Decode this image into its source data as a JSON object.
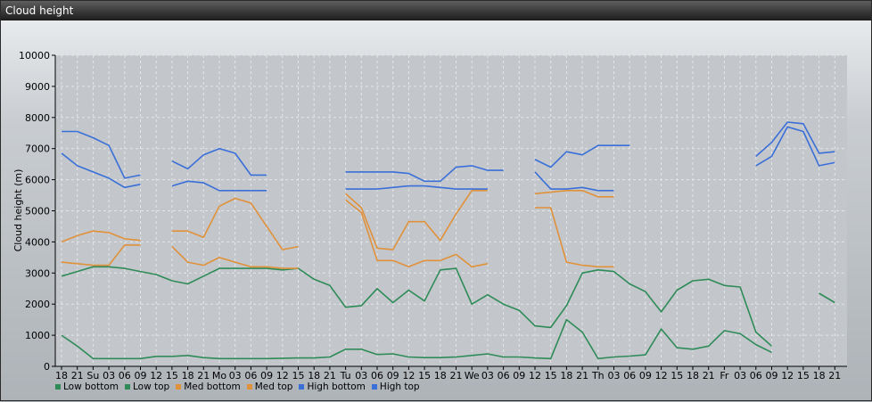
{
  "window": {
    "title": "Cloud height"
  },
  "chart_data": {
    "type": "line",
    "ylabel": "Cloud height (m)",
    "xlabel": "",
    "ylim": [
      0,
      10000
    ],
    "yticks": [
      0,
      1000,
      2000,
      3000,
      4000,
      5000,
      6000,
      7000,
      8000,
      9000,
      10000
    ],
    "grid": true,
    "legend_position": "bottom-left",
    "x_tick_labels": [
      "18",
      "21",
      "Su",
      "03",
      "06",
      "09",
      "12",
      "15",
      "18",
      "21",
      "Mo",
      "03",
      "06",
      "09",
      "12",
      "15",
      "18",
      "21",
      "Tu",
      "03",
      "06",
      "09",
      "12",
      "15",
      "18",
      "21",
      "We",
      "03",
      "06",
      "09",
      "12",
      "15",
      "18",
      "21",
      "Th",
      "03",
      "06",
      "09",
      "12",
      "15",
      "18",
      "21",
      "Fr",
      "03",
      "06",
      "09",
      "12",
      "15",
      "18",
      "21"
    ],
    "series": [
      {
        "name": "Low bottom",
        "color": "#2e8b57",
        "values": [
          1000,
          650,
          250,
          250,
          250,
          250,
          320,
          320,
          350,
          280,
          250,
          250,
          250,
          250,
          260,
          270,
          270,
          300,
          550,
          550,
          380,
          400,
          300,
          280,
          280,
          300,
          350,
          400,
          300,
          300,
          270,
          250,
          1500,
          1100,
          250,
          300,
          330,
          370,
          1200,
          600,
          550,
          650,
          1150,
          1050,
          700,
          450,
          null,
          null,
          null,
          null
        ]
      },
      {
        "name": "Low top",
        "color": "#2e8b57",
        "values": [
          2900,
          3050,
          3200,
          3200,
          3150,
          3050,
          2950,
          2750,
          2650,
          2900,
          3150,
          3150,
          3150,
          3150,
          3100,
          3150,
          2800,
          2600,
          1900,
          1950,
          2500,
          2050,
          2450,
          2100,
          3100,
          3150,
          2000,
          2300,
          2000,
          1800,
          1300,
          1250,
          1950,
          3000,
          3100,
          3050,
          2650,
          2400,
          1750,
          2450,
          2750,
          2800,
          2600,
          2550,
          1100,
          650,
          null,
          null,
          2350,
          2050
        ]
      },
      {
        "name": "Med bottom",
        "color": "#e0913a",
        "values": [
          3350,
          3300,
          3250,
          3250,
          3900,
          3900,
          null,
          3850,
          3350,
          3250,
          3500,
          3350,
          3200,
          3200,
          3150,
          3150,
          null,
          null,
          5350,
          4950,
          3400,
          3400,
          3200,
          3400,
          3400,
          3600,
          3200,
          3300,
          null,
          null,
          5100,
          5100,
          3350,
          3250,
          3200,
          3200,
          null,
          null,
          null,
          null,
          null,
          null,
          null,
          null,
          null,
          null,
          null,
          null,
          null,
          null
        ]
      },
      {
        "name": "Med top",
        "color": "#e0913a",
        "values": [
          4000,
          4200,
          4350,
          4300,
          4100,
          4050,
          null,
          4350,
          4350,
          4150,
          5150,
          5400,
          5250,
          4500,
          3750,
          3850,
          null,
          null,
          5550,
          5100,
          3800,
          3750,
          4650,
          4650,
          4050,
          4900,
          5650,
          5650,
          null,
          null,
          5550,
          5600,
          5650,
          5650,
          5450,
          5450,
          null,
          null,
          null,
          null,
          null,
          null,
          null,
          null,
          null,
          null,
          null,
          null,
          null,
          null
        ]
      },
      {
        "name": "High bottom",
        "color": "#3a6fd8",
        "values": [
          6850,
          6450,
          6250,
          6050,
          5750,
          5850,
          null,
          5800,
          5950,
          5900,
          5650,
          5650,
          5650,
          5650,
          null,
          null,
          null,
          null,
          5700,
          5700,
          5700,
          5750,
          5800,
          5800,
          5750,
          5700,
          5700,
          5700,
          null,
          null,
          6250,
          5700,
          5700,
          5750,
          5650,
          5650,
          null,
          null,
          null,
          null,
          null,
          null,
          null,
          null,
          6450,
          6750,
          7700,
          7550,
          6450,
          6550
        ]
      },
      {
        "name": "High top",
        "color": "#3a6fd8",
        "values": [
          7550,
          7550,
          7350,
          7100,
          6050,
          6150,
          null,
          6600,
          6350,
          6800,
          7000,
          6850,
          6150,
          6150,
          null,
          null,
          null,
          null,
          6250,
          6250,
          6250,
          6250,
          6200,
          5950,
          5950,
          6400,
          6450,
          6300,
          6300,
          null,
          6650,
          6400,
          6900,
          6800,
          7100,
          7100,
          7100,
          null,
          null,
          null,
          null,
          null,
          null,
          null,
          6750,
          7200,
          7850,
          7800,
          6850,
          6900
        ]
      }
    ]
  }
}
